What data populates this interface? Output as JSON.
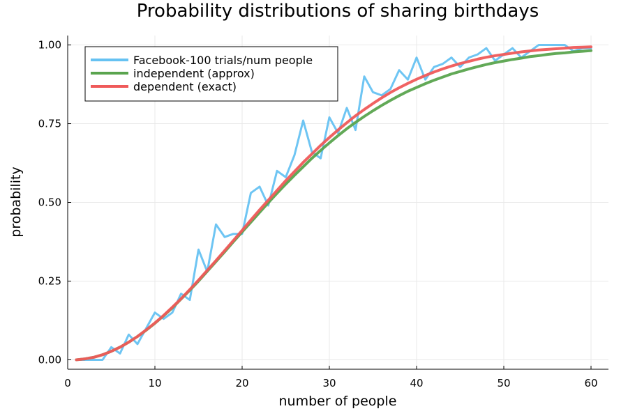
{
  "chart_data": {
    "type": "line",
    "title": "Probability distributions of sharing birthdays",
    "xlabel": "number of people",
    "ylabel": "probability",
    "xlim": [
      0,
      62
    ],
    "ylim": [
      -0.03,
      1.03
    ],
    "xticks": [
      0,
      10,
      20,
      30,
      40,
      50,
      60
    ],
    "yticks": [
      0.0,
      0.25,
      0.5,
      0.75,
      1.0
    ],
    "ytick_labels": [
      "0.00",
      "0.25",
      "0.50",
      "0.75",
      "1.00"
    ],
    "grid": true,
    "legend_position": "top-left",
    "x": [
      1,
      2,
      3,
      4,
      5,
      6,
      7,
      8,
      9,
      10,
      11,
      12,
      13,
      14,
      15,
      16,
      17,
      18,
      19,
      20,
      21,
      22,
      23,
      24,
      25,
      26,
      27,
      28,
      29,
      30,
      31,
      32,
      33,
      34,
      35,
      36,
      37,
      38,
      39,
      40,
      41,
      42,
      43,
      44,
      45,
      46,
      47,
      48,
      49,
      50,
      51,
      52,
      53,
      54,
      55,
      56,
      57,
      58,
      59,
      60
    ],
    "series": [
      {
        "name": "Facebook-100 trials/num people",
        "color": "#66c2f2",
        "values": [
          0.0,
          0.0,
          0.0,
          0.0,
          0.04,
          0.02,
          0.08,
          0.05,
          0.1,
          0.15,
          0.13,
          0.15,
          0.21,
          0.19,
          0.35,
          0.28,
          0.43,
          0.39,
          0.4,
          0.4,
          0.53,
          0.55,
          0.49,
          0.6,
          0.58,
          0.65,
          0.76,
          0.66,
          0.64,
          0.77,
          0.72,
          0.8,
          0.73,
          0.9,
          0.85,
          0.84,
          0.86,
          0.92,
          0.89,
          0.96,
          0.89,
          0.93,
          0.94,
          0.96,
          0.93,
          0.96,
          0.97,
          0.99,
          0.95,
          0.97,
          0.99,
          0.96,
          0.98,
          1.0,
          1.0,
          1.0,
          1.0,
          0.98,
          0.99,
          0.99
        ]
      },
      {
        "name": "independent (approx)",
        "color": "#5aa44e",
        "values": [
          0.0,
          0.003,
          0.008,
          0.016,
          0.027,
          0.04,
          0.056,
          0.074,
          0.094,
          0.116,
          0.14,
          0.165,
          0.193,
          0.221,
          0.25,
          0.281,
          0.312,
          0.343,
          0.375,
          0.406,
          0.437,
          0.468,
          0.499,
          0.529,
          0.558,
          0.586,
          0.613,
          0.64,
          0.665,
          0.689,
          0.712,
          0.734,
          0.754,
          0.773,
          0.791,
          0.808,
          0.824,
          0.839,
          0.853,
          0.865,
          0.877,
          0.888,
          0.898,
          0.908,
          0.916,
          0.924,
          0.931,
          0.938,
          0.944,
          0.949,
          0.954,
          0.958,
          0.963,
          0.966,
          0.97,
          0.973,
          0.975,
          0.978,
          0.98,
          0.982
        ]
      },
      {
        "name": "dependent (exact)",
        "color": "#ef5a5a",
        "values": [
          0.0,
          0.003,
          0.008,
          0.016,
          0.027,
          0.04,
          0.056,
          0.074,
          0.095,
          0.117,
          0.141,
          0.167,
          0.194,
          0.223,
          0.253,
          0.284,
          0.315,
          0.347,
          0.379,
          0.411,
          0.444,
          0.476,
          0.507,
          0.538,
          0.569,
          0.598,
          0.627,
          0.654,
          0.681,
          0.706,
          0.73,
          0.753,
          0.775,
          0.795,
          0.814,
          0.832,
          0.849,
          0.864,
          0.878,
          0.891,
          0.903,
          0.914,
          0.924,
          0.933,
          0.941,
          0.948,
          0.955,
          0.961,
          0.966,
          0.97,
          0.974,
          0.978,
          0.981,
          0.984,
          0.986,
          0.988,
          0.99,
          0.992,
          0.993,
          0.994
        ]
      }
    ]
  }
}
